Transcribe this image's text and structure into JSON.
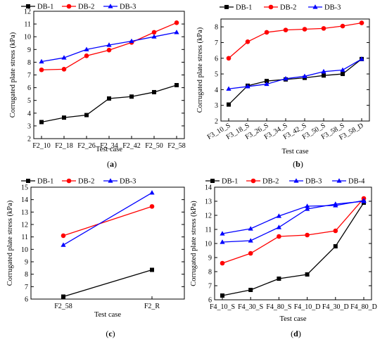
{
  "chart_data": [
    {
      "type": "line",
      "caption": "(a)",
      "caption_letter": "a",
      "xlabel": "Test case",
      "ylabel": "Corrugated plate stress (kPa)",
      "ylim": [
        2,
        12
      ],
      "yticks": [
        2,
        3,
        4,
        5,
        6,
        7,
        8,
        9,
        10,
        11,
        12
      ],
      "categories": [
        "F2_10",
        "F2_18",
        "F2_26",
        "F2_34",
        "F2_42",
        "F2_50",
        "F2_58"
      ],
      "legend_position": "top",
      "series": [
        {
          "name": "DB-1",
          "color": "#000000",
          "marker": "square",
          "values": [
            3.3,
            3.65,
            3.85,
            5.15,
            5.3,
            5.65,
            6.2
          ]
        },
        {
          "name": "DB-2",
          "color": "#ff0000",
          "marker": "circle",
          "values": [
            7.4,
            7.45,
            8.5,
            8.95,
            9.55,
            10.35,
            11.1
          ]
        },
        {
          "name": "DB-3",
          "color": "#0000ff",
          "marker": "triangle",
          "values": [
            8.05,
            8.35,
            9.0,
            9.35,
            9.65,
            10.0,
            10.35
          ]
        }
      ]
    },
    {
      "type": "line",
      "caption": "(b)",
      "caption_letter": "b",
      "xlabel": "Test case",
      "ylabel": "Corrugated plate stress (kPa)",
      "ylim": [
        2,
        8.5
      ],
      "yticks": [
        2,
        3,
        4,
        5,
        6,
        7,
        8
      ],
      "categories": [
        "F3_10_S",
        "F3_18_S",
        "F3_26_S",
        "F3_34_S",
        "F3_42_S",
        "F3_50_S",
        "F3_58_S",
        "F3_58_D"
      ],
      "legend_position": "top",
      "series": [
        {
          "name": "DB-1",
          "color": "#000000",
          "marker": "square",
          "values": [
            3.05,
            4.25,
            4.55,
            4.65,
            4.75,
            4.9,
            5.0,
            5.95
          ]
        },
        {
          "name": "DB-2",
          "color": "#ff0000",
          "marker": "circle",
          "values": [
            6.0,
            7.05,
            7.65,
            7.8,
            7.85,
            7.9,
            8.05,
            8.25
          ]
        },
        {
          "name": "DB-3",
          "color": "#0000ff",
          "marker": "triangle",
          "values": [
            4.05,
            4.2,
            4.35,
            4.7,
            4.85,
            5.15,
            5.25,
            5.95
          ]
        }
      ]
    },
    {
      "type": "line",
      "caption": "(c)",
      "caption_letter": "c",
      "xlabel": "Test case",
      "ylabel": "Corrugated plate stress (kPa)",
      "ylim": [
        6,
        15
      ],
      "yticks": [
        6,
        7,
        8,
        9,
        10,
        11,
        12,
        13,
        14,
        15
      ],
      "categories": [
        "F2_58",
        "F2_R"
      ],
      "legend_position": "top",
      "series": [
        {
          "name": "DB-1",
          "color": "#000000",
          "marker": "square",
          "values": [
            6.2,
            8.35
          ]
        },
        {
          "name": "DB-2",
          "color": "#ff0000",
          "marker": "circle",
          "values": [
            11.1,
            13.45
          ]
        },
        {
          "name": "DB-3",
          "color": "#0000ff",
          "marker": "triangle",
          "values": [
            10.35,
            14.55
          ]
        }
      ]
    },
    {
      "type": "line",
      "caption": "(d)",
      "caption_letter": "d",
      "xlabel": "Test case",
      "ylabel": "Corrugated plate stress (kPa)",
      "ylim": [
        6,
        14
      ],
      "yticks": [
        6,
        7,
        8,
        9,
        10,
        11,
        12,
        13,
        14
      ],
      "categories": [
        "F4_10_S",
        "F4_30_S",
        "F4_80_S",
        "F4_10_D",
        "F4_30_D",
        "F4_80_D"
      ],
      "legend_position": "top",
      "series": [
        {
          "name": "DB-1",
          "color": "#000000",
          "marker": "square",
          "values": [
            6.3,
            6.7,
            7.5,
            7.8,
            9.8,
            12.9
          ]
        },
        {
          "name": "DB-2",
          "color": "#ff0000",
          "marker": "circle",
          "values": [
            8.6,
            9.3,
            10.5,
            10.6,
            10.9,
            13.2
          ]
        },
        {
          "name": "DB-3",
          "color": "#0000ff",
          "marker": "triangle",
          "values": [
            10.1,
            10.2,
            11.15,
            12.45,
            12.8,
            13.0
          ]
        },
        {
          "name": "DB-4",
          "color": "#0000ff",
          "marker": "triangle",
          "values": [
            10.7,
            11.05,
            11.95,
            12.65,
            12.7,
            13.05
          ]
        }
      ]
    }
  ]
}
